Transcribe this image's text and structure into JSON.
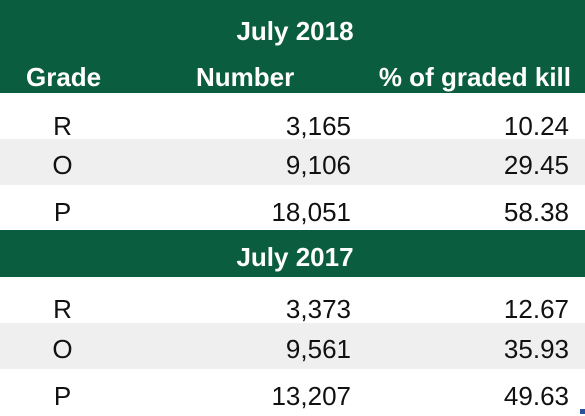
{
  "columns": {
    "grade": "Grade",
    "number": "Number",
    "pct": "% of graded kill"
  },
  "sections": [
    {
      "period": "July 2018",
      "rows": [
        {
          "grade": "R",
          "number": "3,165",
          "pct": "10.24"
        },
        {
          "grade": "O",
          "number": "9,106",
          "pct": "29.45"
        },
        {
          "grade": "P",
          "number": "18,051",
          "pct": "58.38"
        }
      ]
    },
    {
      "period": "July 2017",
      "rows": [
        {
          "grade": "R",
          "number": "3,373",
          "pct": "12.67"
        },
        {
          "grade": "O",
          "number": "9,561",
          "pct": "35.93"
        },
        {
          "grade": "P",
          "number": "13,207",
          "pct": "49.63"
        }
      ]
    }
  ],
  "colors": {
    "header_bg": "#0b5d3f",
    "alt_row_bg": "#efefef"
  }
}
